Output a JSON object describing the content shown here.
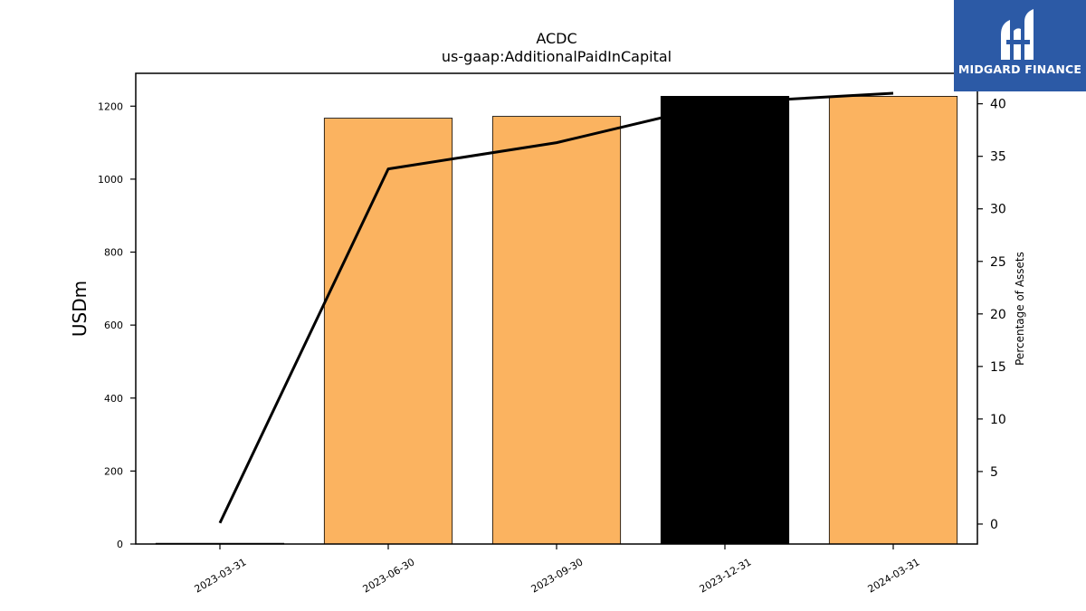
{
  "chart_data": {
    "type": "bar",
    "title": "ACDC",
    "subtitle": "us-gaap:AdditionalPaidInCapital",
    "ylabel": "USDm",
    "y2label": "Percentage of Assets",
    "categories": [
      "2023-03-31",
      "2023-06-30",
      "2023-09-30",
      "2023-12-31",
      "2024-03-31"
    ],
    "series": [
      {
        "kind": "bar",
        "values": [
          2,
          1167,
          1172,
          1227,
          1227
        ],
        "colors": [
          "#fbb360",
          "#fbb360",
          "#fbb360",
          "#000000",
          "#fbb360"
        ]
      },
      {
        "kind": "line",
        "axis": "right",
        "values": [
          0.1,
          33.8,
          36.3,
          40.1,
          41.0
        ],
        "color": "#000000"
      }
    ],
    "ylim": [
      0,
      1290
    ],
    "y2lim": [
      -1.9,
      42.9
    ],
    "yticks": [
      0,
      200,
      400,
      600,
      800,
      1000,
      1200
    ],
    "y2ticks": [
      0,
      5,
      10,
      15,
      20,
      25,
      30,
      35,
      40
    ],
    "grid": false
  },
  "logo": {
    "text": "MIDGARD FINANCE"
  }
}
